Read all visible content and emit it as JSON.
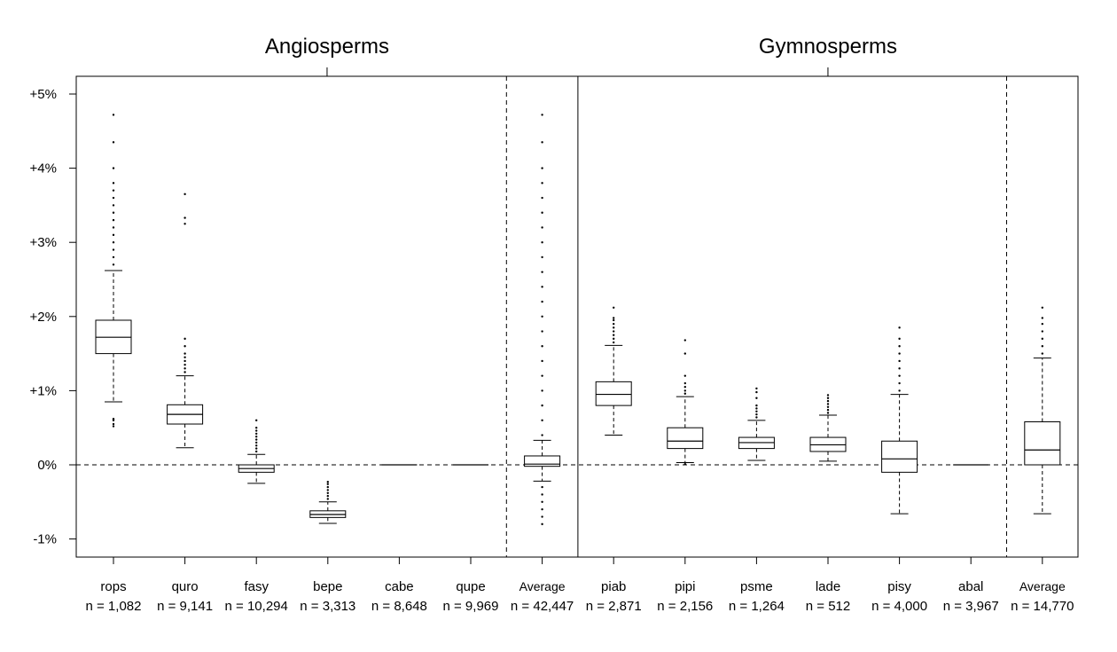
{
  "chart_data": {
    "type": "boxplot",
    "title": "",
    "panels": [
      {
        "name": "Angiosperms"
      },
      {
        "name": "Gymnosperms"
      }
    ],
    "ylabel": "",
    "ylim": [
      -1.25,
      5.0
    ],
    "yticks": [
      -1,
      0,
      1,
      2,
      3,
      4,
      5
    ],
    "ytick_labels": [
      "-1%",
      "0%",
      "+1%",
      "+2%",
      "+3%",
      "+4%",
      "+5%"
    ],
    "reference_line": 0,
    "groups": [
      {
        "label": "rops",
        "n_label": "n = 1,082",
        "panel": 0,
        "q1": 1.5,
        "median": 1.72,
        "q3": 1.95,
        "whisker_low": 0.85,
        "whisker_high": 2.62,
        "outliers": [
          0.52,
          0.55,
          0.6,
          0.62,
          2.7,
          2.8,
          2.9,
          3.0,
          3.1,
          3.2,
          3.3,
          3.4,
          3.5,
          3.6,
          3.7,
          3.8,
          4.0,
          4.35,
          4.72
        ]
      },
      {
        "label": "quro",
        "n_label": "n = 9,141",
        "panel": 0,
        "q1": 0.55,
        "median": 0.68,
        "q3": 0.81,
        "whisker_low": 0.23,
        "whisker_high": 1.2,
        "outliers": [
          1.25,
          1.3,
          1.35,
          1.4,
          1.45,
          1.5,
          1.6,
          1.7,
          3.25,
          3.33,
          3.65
        ]
      },
      {
        "label": "fasy",
        "n_label": "n = 10,294",
        "panel": 0,
        "q1": -0.1,
        "median": -0.05,
        "q3": 0.0,
        "whisker_low": -0.25,
        "whisker_high": 0.14,
        "outliers": [
          0.18,
          0.22,
          0.26,
          0.3,
          0.34,
          0.38,
          0.42,
          0.46,
          0.5,
          0.6
        ]
      },
      {
        "label": "bepe",
        "n_label": "n = 3,313",
        "panel": 0,
        "q1": -0.71,
        "median": -0.67,
        "q3": -0.62,
        "whisker_low": -0.79,
        "whisker_high": -0.5,
        "outliers": [
          -0.46,
          -0.42,
          -0.38,
          -0.34,
          -0.3,
          -0.26,
          -0.23
        ]
      },
      {
        "label": "cabe",
        "n_label": "n = 8,648",
        "panel": 0,
        "q1": 0.0,
        "median": 0.0,
        "q3": 0.0,
        "whisker_low": 0.0,
        "whisker_high": 0.0,
        "outliers": []
      },
      {
        "label": "qupe",
        "n_label": "n = 9,969",
        "panel": 0,
        "q1": 0.0,
        "median": 0.0,
        "q3": 0.0,
        "whisker_low": 0.0,
        "whisker_high": 0.0,
        "outliers": []
      },
      {
        "label": "Average",
        "n_label": "n = 42,447",
        "panel": 0,
        "q1": -0.02,
        "median": 0.01,
        "q3": 0.12,
        "whisker_low": -0.22,
        "whisker_high": 0.33,
        "outliers": [
          -0.3,
          -0.4,
          -0.5,
          -0.6,
          -0.7,
          -0.8,
          0.4,
          0.6,
          0.8,
          1.0,
          1.2,
          1.4,
          1.6,
          1.8,
          2.0,
          2.2,
          2.4,
          2.6,
          2.8,
          3.0,
          3.2,
          3.4,
          3.6,
          3.8,
          4.0,
          4.35,
          4.72
        ]
      },
      {
        "label": "piab",
        "n_label": "n = 2,871",
        "panel": 1,
        "q1": 0.8,
        "median": 0.95,
        "q3": 1.12,
        "whisker_low": 0.4,
        "whisker_high": 1.61,
        "outliers": [
          1.65,
          1.7,
          1.75,
          1.8,
          1.85,
          1.9,
          1.95,
          1.98,
          2.12
        ]
      },
      {
        "label": "pipi",
        "n_label": "n = 2,156",
        "panel": 1,
        "q1": 0.22,
        "median": 0.32,
        "q3": 0.5,
        "whisker_low": 0.03,
        "whisker_high": 0.92,
        "outliers": [
          0.01,
          0.96,
          1.0,
          1.05,
          1.1,
          1.2,
          1.5,
          1.68
        ]
      },
      {
        "label": "psme",
        "n_label": "n = 1,264",
        "panel": 1,
        "q1": 0.22,
        "median": 0.3,
        "q3": 0.37,
        "whisker_low": 0.06,
        "whisker_high": 0.6,
        "outliers": [
          0.64,
          0.68,
          0.72,
          0.76,
          0.8,
          0.9,
          0.98,
          1.03
        ]
      },
      {
        "label": "lade",
        "n_label": "n = 512",
        "panel": 1,
        "q1": 0.18,
        "median": 0.27,
        "q3": 0.37,
        "whisker_low": 0.05,
        "whisker_high": 0.67,
        "outliers": [
          0.7,
          0.74,
          0.78,
          0.82,
          0.86,
          0.9,
          0.94
        ]
      },
      {
        "label": "pisy",
        "n_label": "n = 4,000",
        "panel": 1,
        "q1": -0.1,
        "median": 0.08,
        "q3": 0.32,
        "whisker_low": -0.66,
        "whisker_high": 0.95,
        "outliers": [
          1.0,
          1.1,
          1.2,
          1.3,
          1.4,
          1.5,
          1.6,
          1.7,
          1.85
        ]
      },
      {
        "label": "abal",
        "n_label": "n = 3,967",
        "panel": 1,
        "q1": 0.0,
        "median": 0.0,
        "q3": 0.0,
        "whisker_low": 0.0,
        "whisker_high": 0.0,
        "outliers": []
      },
      {
        "label": "Average",
        "n_label": "n = 14,770",
        "panel": 1,
        "q1": 0.0,
        "median": 0.2,
        "q3": 0.58,
        "whisker_low": -0.66,
        "whisker_high": 1.44,
        "outliers": [
          1.5,
          1.6,
          1.7,
          1.8,
          1.9,
          1.98,
          2.12
        ]
      }
    ]
  }
}
